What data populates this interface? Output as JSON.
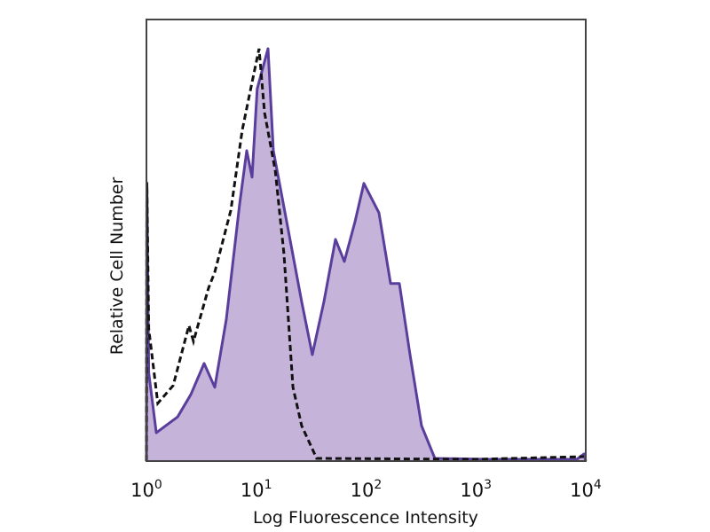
{
  "chart_data": {
    "type": "area",
    "title": "",
    "xlabel": "Log Fluorescence Intensity",
    "ylabel": "Relative Cell Number",
    "x_scale": "log",
    "xlim": [
      1,
      10000
    ],
    "ylim": [
      0,
      100
    ],
    "grid": false,
    "legend": "none",
    "x_ticks": [
      {
        "base": "10",
        "exp": "0",
        "value": 1
      },
      {
        "base": "10",
        "exp": "1",
        "value": 10
      },
      {
        "base": "10",
        "exp": "2",
        "value": 100
      },
      {
        "base": "10",
        "exp": "3",
        "value": 1000
      },
      {
        "base": "10",
        "exp": "4",
        "value": 10000
      }
    ],
    "series": [
      {
        "style": "filled-solid",
        "fill_color": "#c6b3da",
        "line_color": "#5a3e9c",
        "points": [
          [
            1.0,
            0
          ],
          [
            1.01,
            63
          ],
          [
            1.05,
            20
          ],
          [
            1.23,
            6.4
          ],
          [
            1.92,
            10.0
          ],
          [
            2.54,
            15.1
          ],
          [
            3.35,
            22.1
          ],
          [
            4.19,
            16.7
          ],
          [
            5.34,
            32.1
          ],
          [
            7.05,
            58.2
          ],
          [
            8.19,
            70.3
          ],
          [
            9.15,
            64.3
          ],
          [
            10.2,
            84.3
          ],
          [
            12.8,
            93.4
          ],
          [
            14.3,
            70.3
          ],
          [
            19.6,
            52.2
          ],
          [
            25.9,
            36.1
          ],
          [
            32.4,
            24.1
          ],
          [
            41.3,
            36.1
          ],
          [
            52.6,
            50.2
          ],
          [
            63.4,
            45.2
          ],
          [
            79.2,
            54.2
          ],
          [
            95.5,
            62.9
          ],
          [
            131,
            56.2
          ],
          [
            167,
            40.2
          ],
          [
            201,
            40.2
          ],
          [
            251,
            24.1
          ],
          [
            320,
            8.0
          ],
          [
            423,
            0.6
          ],
          [
            1292,
            0.4
          ],
          [
            8300,
            0.4
          ],
          [
            9640,
            1.6
          ],
          [
            10000,
            0
          ]
        ]
      },
      {
        "style": "dashed",
        "line_color": "#111111",
        "points": [
          [
            1.0,
            0
          ],
          [
            1.01,
            63
          ],
          [
            1.05,
            30
          ],
          [
            1.27,
            13.1
          ],
          [
            1.75,
            17.1
          ],
          [
            2.44,
            30.7
          ],
          [
            2.68,
            27.1
          ],
          [
            3.68,
            39.2
          ],
          [
            4.19,
            42.8
          ],
          [
            5.87,
            56.8
          ],
          [
            7.44,
            74.9
          ],
          [
            9.0,
            84.9
          ],
          [
            10.6,
            93.4
          ],
          [
            11.9,
            78.9
          ],
          [
            14.9,
            65.7
          ],
          [
            17.9,
            46.8
          ],
          [
            21.6,
            16.7
          ],
          [
            25.9,
            8.0
          ],
          [
            35.5,
            0.6
          ],
          [
            1000,
            0.4
          ],
          [
            9600,
            1.0
          ]
        ]
      }
    ]
  }
}
